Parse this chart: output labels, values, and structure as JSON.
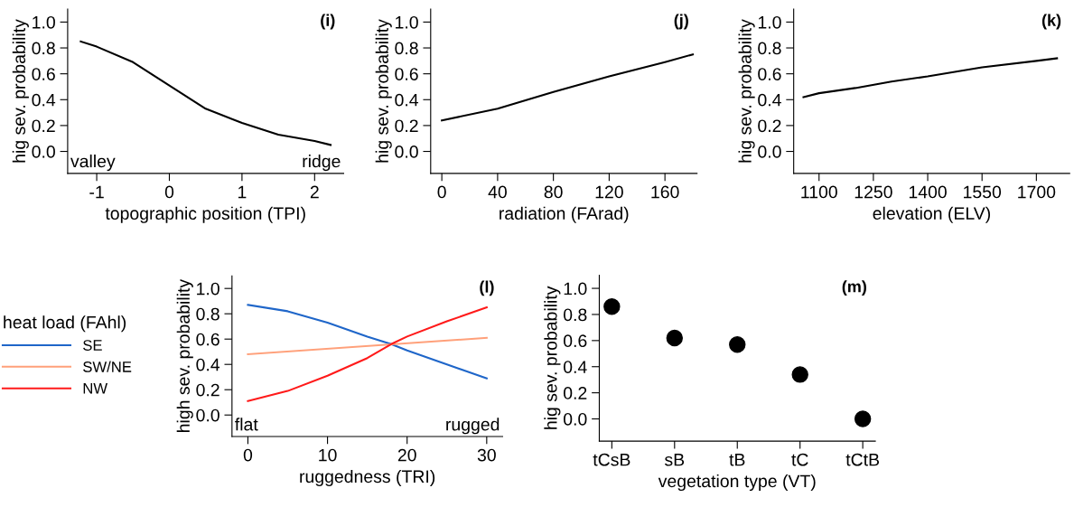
{
  "chart_data": [
    {
      "type": "line",
      "title": "(i)",
      "xlabel": "topographic position (TPI)",
      "ylabel": "hig sev. probability",
      "annotations": [
        "valley",
        "ridge"
      ],
      "xlim": [
        -1.4,
        2.4
      ],
      "xticks": [
        -1,
        0,
        1,
        2
      ],
      "ylim": [
        -0.17,
        1.1
      ],
      "yticks": [
        {
          "value": 0,
          "label": "0.0"
        },
        {
          "value": 0.2,
          "label": "0.2"
        },
        {
          "value": 0.4,
          "label": "0.4"
        },
        {
          "value": 0.6,
          "label": "0.6"
        },
        {
          "value": 0.8,
          "label": "0.8"
        },
        {
          "value": 1,
          "label": "1.0"
        }
      ],
      "series": [
        {
          "color": "#000000",
          "x": [
            -1.22,
            -1.0,
            -0.5,
            0.0,
            0.5,
            1.0,
            1.5,
            2.0,
            2.22
          ],
          "values": [
            0.85,
            0.81,
            0.69,
            0.51,
            0.33,
            0.22,
            0.13,
            0.08,
            0.05
          ]
        }
      ]
    },
    {
      "type": "line",
      "title": "(j)",
      "xlabel": "radiation (FArad)",
      "ylabel": "hig sev. probability",
      "xlim": [
        -8,
        183
      ],
      "xticks": [
        0,
        40,
        80,
        120,
        160
      ],
      "ylim": [
        -0.17,
        1.1
      ],
      "yticks": [
        {
          "value": 0,
          "label": "0.0"
        },
        {
          "value": 0.2,
          "label": "0.2"
        },
        {
          "value": 0.4,
          "label": "0.4"
        },
        {
          "value": 0.6,
          "label": "0.6"
        },
        {
          "value": 0.8,
          "label": "0.8"
        },
        {
          "value": 1,
          "label": "1.0"
        }
      ],
      "series": [
        {
          "color": "#000000",
          "x": [
            0,
            40,
            80,
            120,
            160,
            180
          ],
          "values": [
            0.24,
            0.33,
            0.46,
            0.58,
            0.69,
            0.75
          ]
        }
      ]
    },
    {
      "type": "line",
      "title": "(k)",
      "xlabel": "elevation (ELV)",
      "ylabel": "hig sev. probability",
      "xlim": [
        1030,
        1792
      ],
      "xticks": [
        1100,
        1250,
        1400,
        1550,
        1700
      ],
      "ylim": [
        -0.17,
        1.1
      ],
      "yticks": [
        {
          "value": 0,
          "label": "0.0"
        },
        {
          "value": 0.2,
          "label": "0.2"
        },
        {
          "value": 0.4,
          "label": "0.4"
        },
        {
          "value": 0.6,
          "label": "0.6"
        },
        {
          "value": 0.8,
          "label": "0.8"
        },
        {
          "value": 1,
          "label": "1.0"
        }
      ],
      "series": [
        {
          "color": "#000000",
          "x": [
            1057,
            1100,
            1200,
            1300,
            1400,
            1550,
            1700,
            1757
          ],
          "values": [
            0.42,
            0.45,
            0.49,
            0.54,
            0.58,
            0.65,
            0.7,
            0.72
          ]
        }
      ]
    },
    {
      "type": "line",
      "title": "(l)",
      "xlabel": "ruggedness (TRI)",
      "ylabel": "high sev. probability",
      "legend_title": "heat load (FAhl)",
      "legend": "left",
      "annotations": [
        "flat",
        "rugged"
      ],
      "xlim": [
        -2,
        32
      ],
      "xticks": [
        0,
        10,
        20,
        30
      ],
      "ylim": [
        -0.17,
        1.1
      ],
      "yticks": [
        {
          "value": 0,
          "label": "0.0"
        },
        {
          "value": 0.2,
          "label": "0.2"
        },
        {
          "value": 0.4,
          "label": "0.4"
        },
        {
          "value": 0.6,
          "label": "0.6"
        },
        {
          "value": 0.8,
          "label": "0.8"
        },
        {
          "value": 1,
          "label": "1.0"
        }
      ],
      "series": [
        {
          "name": "SE",
          "color": "#1f66c9",
          "x": [
            0,
            5,
            10,
            15,
            18,
            20,
            25,
            30
          ],
          "values": [
            0.87,
            0.82,
            0.73,
            0.62,
            0.56,
            0.51,
            0.4,
            0.29
          ]
        },
        {
          "name": "SW/NE",
          "color": "#ffa07a",
          "x": [
            0,
            30
          ],
          "values": [
            0.48,
            0.61
          ]
        },
        {
          "name": "NW",
          "color": "#ff1a1a",
          "x": [
            0,
            5,
            10,
            15,
            18,
            20,
            25,
            30
          ],
          "values": [
            0.11,
            0.19,
            0.31,
            0.45,
            0.56,
            0.62,
            0.74,
            0.85
          ]
        }
      ]
    },
    {
      "type": "scatter",
      "title": "(m)",
      "xlabel": "vegetation type (VT)",
      "ylabel": "hig sev. probability",
      "marker": "circle",
      "categories": [
        "tCsB",
        "sB",
        "tB",
        "tC",
        "tCtB"
      ],
      "ylim": [
        -0.17,
        1.1
      ],
      "yticks": [
        {
          "value": 0,
          "label": "0.0"
        },
        {
          "value": 0.2,
          "label": "0.2"
        },
        {
          "value": 0.4,
          "label": "0.4"
        },
        {
          "value": 0.6,
          "label": "0.6"
        },
        {
          "value": 0.8,
          "label": "0.8"
        },
        {
          "value": 1,
          "label": "1.0"
        }
      ],
      "series": [
        {
          "color": "#000000",
          "values": [
            0.86,
            0.62,
            0.57,
            0.34,
            0.0
          ]
        }
      ]
    }
  ]
}
